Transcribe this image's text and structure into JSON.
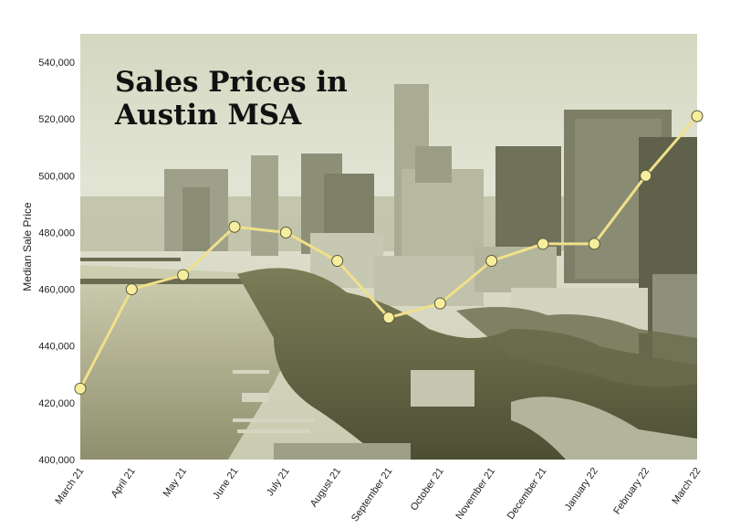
{
  "chart_data": {
    "type": "line",
    "title_lines": [
      "Sales Prices in",
      "Austin MSA"
    ],
    "xlabel": "",
    "ylabel": "Median Sale Price",
    "categories": [
      "March 21",
      "April 21",
      "May 21",
      "June 21",
      "July 21",
      "August 21",
      "September 21",
      "October 21",
      "November 21",
      "December 21",
      "January 22",
      "February 22",
      "March 22"
    ],
    "values": [
      425000,
      460000,
      465000,
      482000,
      480000,
      470000,
      450000,
      455000,
      470000,
      476000,
      476000,
      500000,
      521000
    ],
    "ylim": [
      400000,
      550000
    ],
    "yticks": [
      "400,000",
      "420,000",
      "440,000",
      "460,000",
      "480,000",
      "500,000",
      "520,000",
      "540,000"
    ],
    "grid": false,
    "legend": "none",
    "colors": {
      "line": "#f0e08a",
      "marker_fill": "#f6ee9e",
      "marker_stroke": "#5a5a3a",
      "background_photo_tint": "#a8ab87",
      "sky": "#dfe2cf"
    }
  }
}
